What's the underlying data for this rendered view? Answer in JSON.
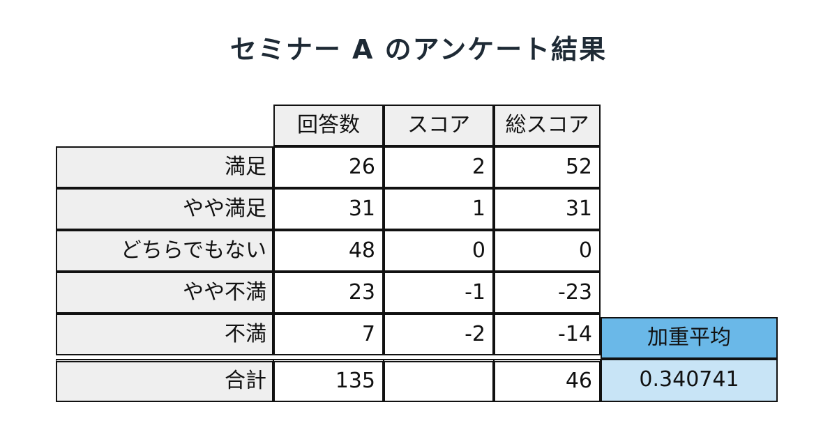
{
  "title": "セミナー A のアンケート結果",
  "table": {
    "headers": [
      "回答数",
      "スコア",
      "総スコア"
    ],
    "rows": [
      {
        "label": "満足",
        "count": "26",
        "score": "2",
        "total": "52"
      },
      {
        "label": "やや満足",
        "count": "31",
        "score": "1",
        "total": "31"
      },
      {
        "label": "どちらでもない",
        "count": "48",
        "score": "0",
        "total": "0"
      },
      {
        "label": "やや不満",
        "count": "23",
        "score": "-1",
        "total": "-23"
      },
      {
        "label": "不満",
        "count": "7",
        "score": "-2",
        "total": "-14"
      }
    ],
    "sum": {
      "label": "合計",
      "count": "135",
      "score": "",
      "total": "46"
    },
    "weighted_average": {
      "label": "加重平均",
      "value": "0.340741"
    }
  },
  "colors": {
    "header_bg": "#efefef",
    "weighted_avg_header": "#6ab8e8",
    "weighted_avg_value": "#c8e4f6"
  }
}
